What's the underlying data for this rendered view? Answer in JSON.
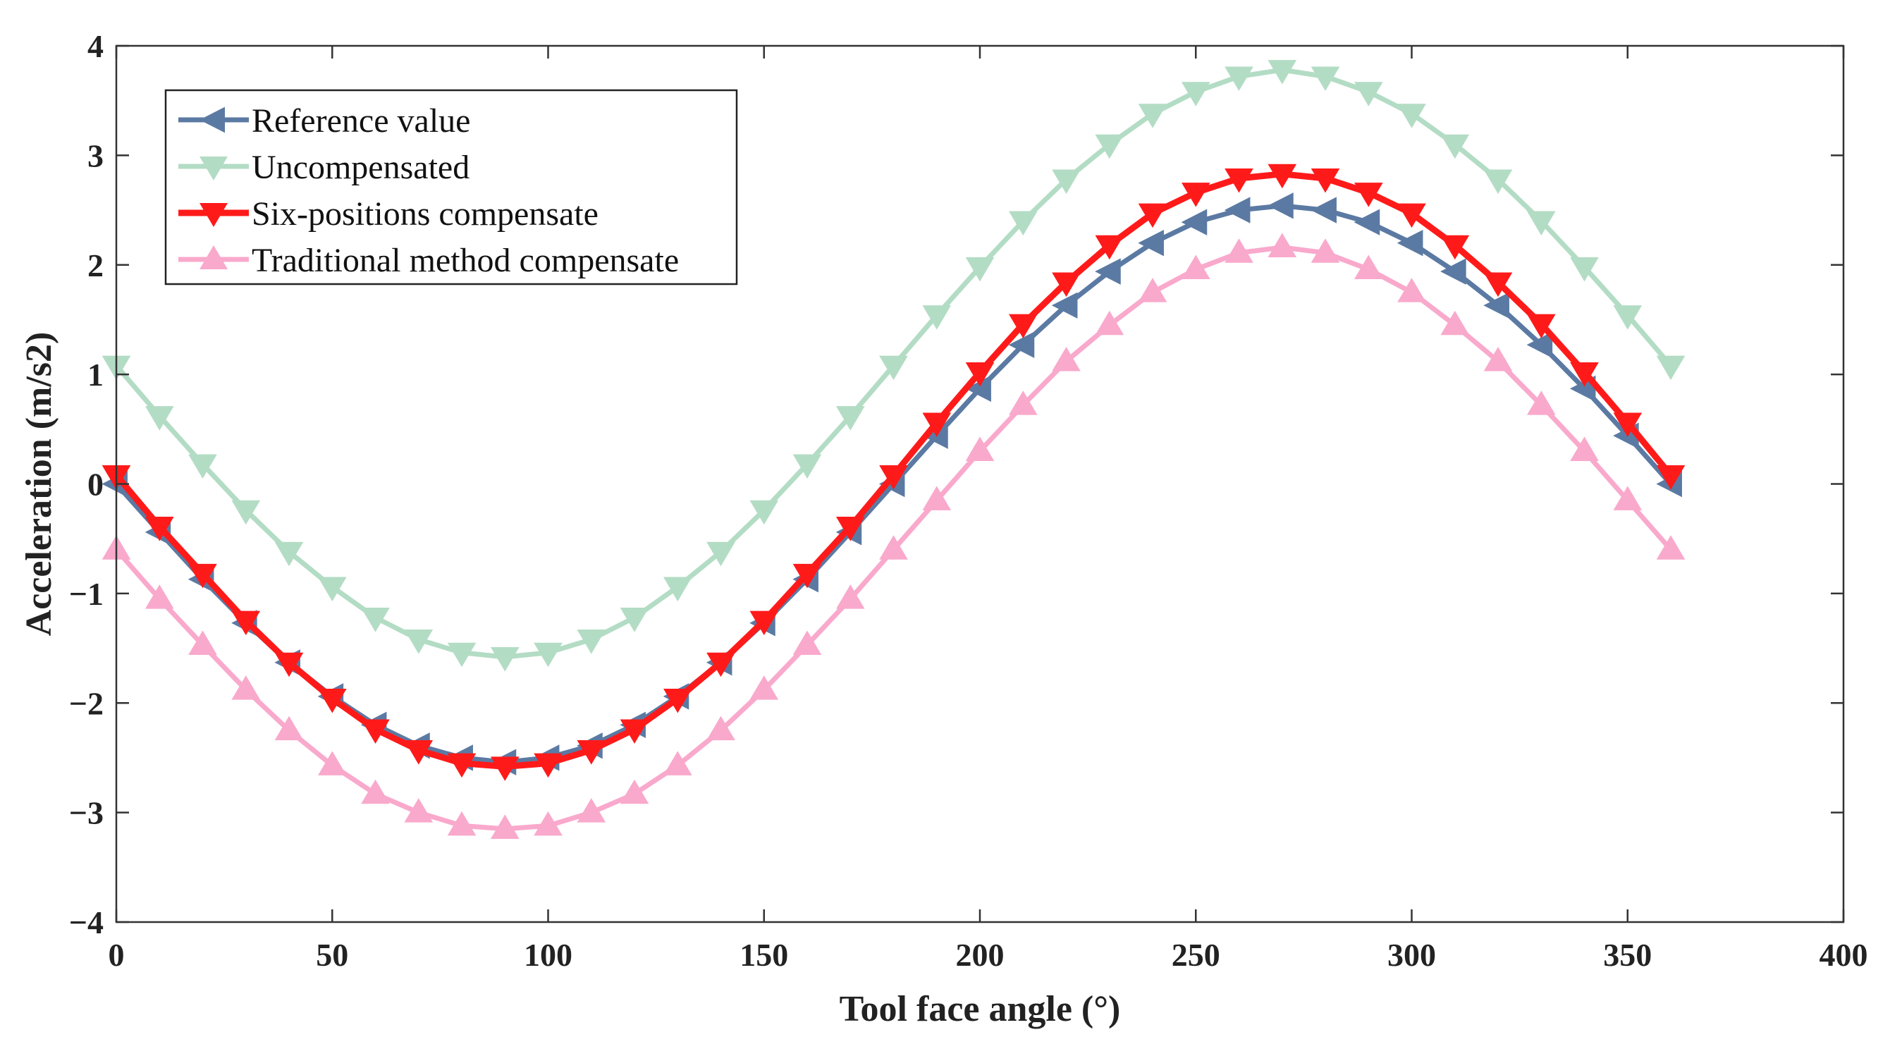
{
  "chart_data": {
    "type": "line",
    "title": "",
    "xlabel": "Tool face angle (°)",
    "ylabel": "Acceleration (m/s2)",
    "xlim": [
      0,
      400
    ],
    "ylim": [
      -4,
      4
    ],
    "xticks": [
      0,
      50,
      100,
      150,
      200,
      250,
      300,
      350,
      400
    ],
    "yticks": [
      4,
      3,
      2,
      1,
      0,
      -1,
      -2,
      -3,
      -4
    ],
    "xtick_labels": [
      "0",
      "50",
      "100",
      "150",
      "200",
      "250",
      "300",
      "350",
      "400"
    ],
    "ytick_labels": [
      "4",
      "3",
      "2",
      "1",
      "0",
      "−1",
      "−2",
      "−3",
      "−4"
    ],
    "grid": false,
    "legend_position": "top-left",
    "x": [
      0,
      10,
      20,
      30,
      40,
      50,
      60,
      70,
      80,
      90,
      100,
      110,
      120,
      130,
      140,
      150,
      160,
      170,
      180,
      190,
      200,
      210,
      220,
      230,
      240,
      250,
      260,
      270,
      280,
      290,
      300,
      310,
      320,
      330,
      340,
      350,
      360
    ],
    "series": [
      {
        "name": "Reference value",
        "color": "#5b7aa3",
        "marker": "triangle-left",
        "values": [
          0.0,
          -0.44,
          -0.87,
          -1.27,
          -1.63,
          -1.94,
          -2.2,
          -2.39,
          -2.5,
          -2.54,
          -2.5,
          -2.39,
          -2.2,
          -1.94,
          -1.63,
          -1.27,
          -0.87,
          -0.44,
          0.0,
          0.44,
          0.87,
          1.27,
          1.63,
          1.94,
          2.2,
          2.39,
          2.5,
          2.54,
          2.5,
          2.39,
          2.2,
          1.94,
          1.63,
          1.27,
          0.87,
          0.44,
          0.0
        ]
      },
      {
        "name": "Uncompensated",
        "color": "#b3dcc4",
        "marker": "triangle-down",
        "values": [
          1.08,
          0.62,
          0.18,
          -0.24,
          -0.62,
          -0.94,
          -1.22,
          -1.42,
          -1.54,
          -1.58,
          -1.54,
          -1.42,
          -1.22,
          -0.94,
          -0.62,
          -0.24,
          0.18,
          0.62,
          1.08,
          1.54,
          1.98,
          2.4,
          2.78,
          3.1,
          3.38,
          3.58,
          3.72,
          3.78,
          3.72,
          3.58,
          3.38,
          3.1,
          2.78,
          2.4,
          1.98,
          1.54,
          1.08
        ]
      },
      {
        "name": "Six-positions compensate",
        "color": "#ff1a1a",
        "marker": "triangle-down",
        "values": [
          0.08,
          -0.39,
          -0.82,
          -1.25,
          -1.63,
          -1.96,
          -2.24,
          -2.43,
          -2.55,
          -2.58,
          -2.55,
          -2.43,
          -2.24,
          -1.96,
          -1.63,
          -1.25,
          -0.82,
          -0.39,
          0.08,
          0.56,
          1.02,
          1.46,
          1.84,
          2.18,
          2.47,
          2.66,
          2.79,
          2.83,
          2.79,
          2.66,
          2.47,
          2.18,
          1.84,
          1.46,
          1.02,
          0.56,
          0.08
        ]
      },
      {
        "name": "Traditional method compensate",
        "color": "#f9a9cc",
        "marker": "triangle-up",
        "values": [
          -0.6,
          -1.05,
          -1.47,
          -1.88,
          -2.25,
          -2.57,
          -2.83,
          -3.0,
          -3.12,
          -3.15,
          -3.12,
          -3.0,
          -2.83,
          -2.57,
          -2.25,
          -1.88,
          -1.47,
          -1.05,
          -0.6,
          -0.15,
          0.3,
          0.72,
          1.12,
          1.45,
          1.75,
          1.96,
          2.11,
          2.16,
          2.11,
          1.96,
          1.75,
          1.45,
          1.12,
          0.72,
          0.3,
          -0.15,
          -0.6
        ]
      }
    ]
  }
}
